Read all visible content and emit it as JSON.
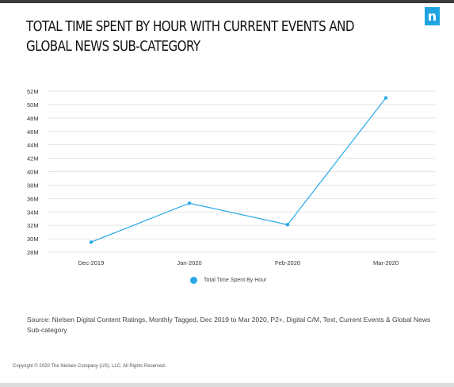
{
  "header": {
    "title": "Total Time Spent By Hour With Current Events and Global News Sub-Category",
    "logo_glyph": "n",
    "logo_color": "#1fa3e0"
  },
  "chart_data": {
    "type": "line",
    "title": "Total Time Spent By Hour With Current Events and Global News Sub-Category",
    "xlabel": "",
    "ylabel": "",
    "categories": [
      "Dec-2019",
      "Jan-2020",
      "Feb-2020",
      "Mar-2020"
    ],
    "series": [
      {
        "name": "Total Time Spent By Hour",
        "color": "#29a8e8",
        "values": [
          29500000,
          35300000,
          32100000,
          51000000
        ]
      }
    ],
    "ylim": [
      28000000,
      52000000
    ],
    "yticks": [
      {
        "value": 28000000,
        "label": "28M"
      },
      {
        "value": 30000000,
        "label": "30M"
      },
      {
        "value": 32000000,
        "label": "32M"
      },
      {
        "value": 34000000,
        "label": "34M"
      },
      {
        "value": 36000000,
        "label": "36M"
      },
      {
        "value": 38000000,
        "label": "38M"
      },
      {
        "value": 40000000,
        "label": "40M"
      },
      {
        "value": 42000000,
        "label": "42M"
      },
      {
        "value": 44000000,
        "label": "44M"
      },
      {
        "value": 46000000,
        "label": "46M"
      },
      {
        "value": 48000000,
        "label": "48M"
      },
      {
        "value": 50000000,
        "label": "50M"
      },
      {
        "value": 52000000,
        "label": "52M"
      }
    ],
    "grid": true,
    "legend": {
      "position": "bottom",
      "label": "Total Time Spent By Hour"
    }
  },
  "footer": {
    "source": "Source: Nielsen Digital Content Ratings, Monthly Tagged, Dec 2019 to Mar 2020, P2+, Digital C/M, Text, Current Events & Global News Sub-category",
    "copyright": "Copyright © 2020 The Nielsen Company (US), LLC. All Rights Reserved."
  }
}
